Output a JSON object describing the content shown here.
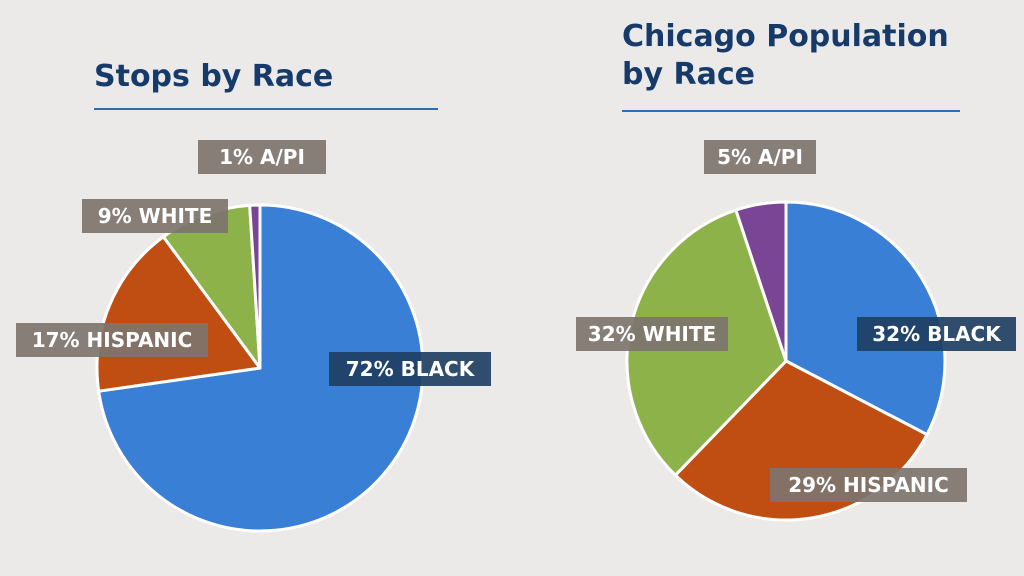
{
  "chart_data": [
    {
      "type": "pie",
      "title": "Stops by Race",
      "slices": [
        {
          "label": "BLACK",
          "value": 72,
          "text": "72% BLACK",
          "color": "#3a7fd6"
        },
        {
          "label": "HISPANIC",
          "value": 17,
          "text": "17% HISPANIC",
          "color": "#c04e12"
        },
        {
          "label": "WHITE",
          "value": 9,
          "text": "9% WHITE",
          "color": "#8db24a"
        },
        {
          "label": "A/PI",
          "value": 1,
          "text": "1% A/PI",
          "color": "#7b4595"
        }
      ]
    },
    {
      "type": "pie",
      "title": "Chicago Population by Race",
      "title_lines": [
        "Chicago Population",
        "by Race"
      ],
      "slices": [
        {
          "label": "BLACK",
          "value": 32,
          "text": "32% BLACK",
          "color": "#3a7fd6"
        },
        {
          "label": "HISPANIC",
          "value": 29,
          "text": "29% HISPANIC",
          "color": "#c04e12"
        },
        {
          "label": "WHITE",
          "value": 32,
          "text": "32% WHITE",
          "color": "#8db24a"
        },
        {
          "label": "A/PI",
          "value": 5,
          "text": "5% A/PI",
          "color": "#7b4595"
        }
      ]
    }
  ],
  "colors": {
    "background": "#eceae8",
    "title": "#163b6b",
    "rule": "#2c6fb0",
    "label_box": "#7e746e",
    "label_box_dark": "#1f3f63"
  }
}
